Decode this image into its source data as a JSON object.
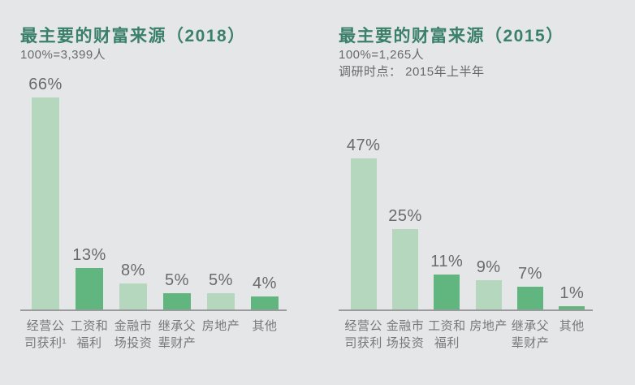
{
  "colors": {
    "background": "#e5e6e8",
    "bar_light": "#b4d7be",
    "bar_dark": "#61b57f",
    "title": "#3b8068",
    "subtitle": "#68696c",
    "value_label": "#696a6c",
    "category": "#77787c",
    "axis": "#9b9b9e"
  },
  "chart_data": [
    {
      "type": "bar",
      "title": "最主要的财富来源（2018）",
      "subtitle": "100%=3,399人",
      "categories": [
        "经营公司获利¹",
        "工资和福利",
        "金融市场投资",
        "继承父辈财产",
        "房地产",
        "其他"
      ],
      "category_lines": [
        [
          "经营公",
          "司获利¹"
        ],
        [
          "工资和",
          "福利"
        ],
        [
          "金融市",
          "场投资"
        ],
        [
          "继承父",
          "辈财产"
        ],
        [
          "房地产"
        ],
        [
          "其他"
        ]
      ],
      "values": [
        66,
        13,
        8,
        5,
        5,
        4
      ],
      "value_labels": [
        "66%",
        "13%",
        "8%",
        "5%",
        "5%",
        "4%"
      ],
      "bar_tones": [
        "light",
        "dark",
        "light",
        "dark",
        "light",
        "dark"
      ],
      "xlabel": "",
      "ylabel": "",
      "ylim": [
        0,
        70
      ],
      "grid": false,
      "legend": false
    },
    {
      "type": "bar",
      "title": "最主要的财富来源（2015）",
      "subtitle": "100%=1,265人",
      "note": "调研时点： 2015年上半年",
      "categories": [
        "经营公司获利",
        "金融市场投资",
        "工资和福利",
        "房地产",
        "继承父辈财产",
        "其他"
      ],
      "category_lines": [
        [
          "经营公",
          "司获利"
        ],
        [
          "金融市",
          "场投资"
        ],
        [
          "工资和",
          "福利"
        ],
        [
          "房地产"
        ],
        [
          "继承父",
          "辈财产"
        ],
        [
          "其他"
        ]
      ],
      "values": [
        47,
        25,
        11,
        9,
        7,
        1
      ],
      "value_labels": [
        "47%",
        "25%",
        "11%",
        "9%",
        "7%",
        "1%"
      ],
      "bar_tones": [
        "light",
        "light",
        "dark",
        "light",
        "dark",
        "dark"
      ],
      "xlabel": "",
      "ylabel": "",
      "ylim": [
        0,
        70
      ],
      "grid": false,
      "legend": false
    }
  ]
}
